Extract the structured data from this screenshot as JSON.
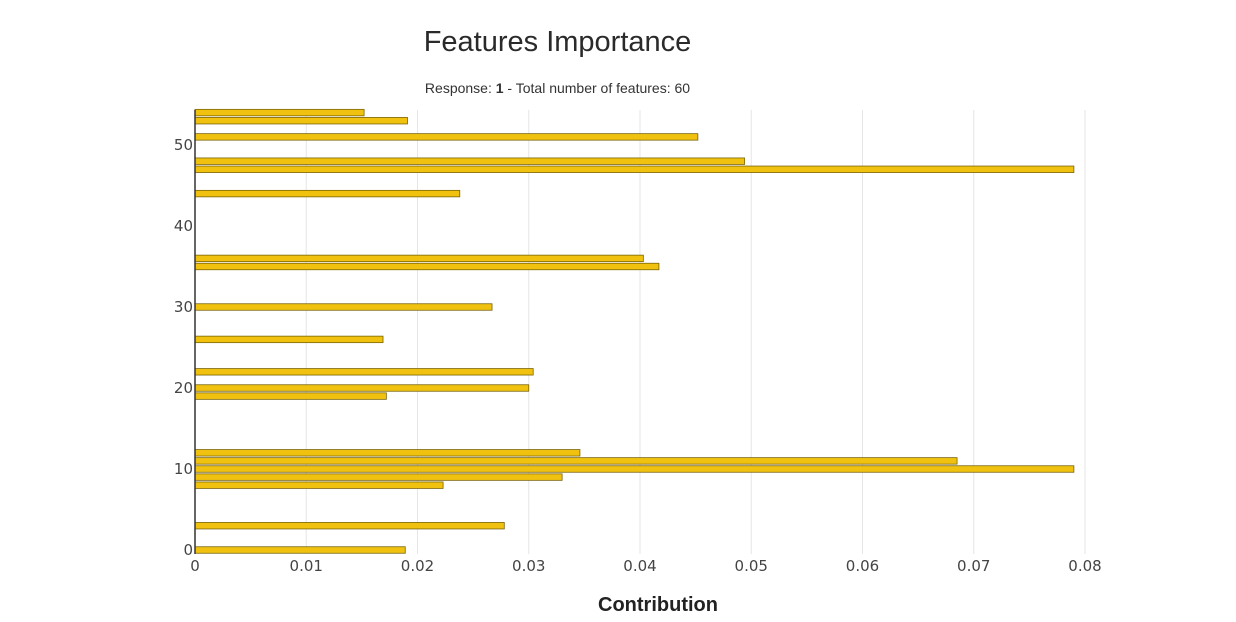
{
  "chart_data": {
    "type": "bar",
    "orientation": "horizontal",
    "title": "Features Importance",
    "subtitle": {
      "prefix": "Response: ",
      "response": "1",
      "suffix": " - Total number of features: 60"
    },
    "xlabel": "Contribution",
    "ylabel": "",
    "xlim": [
      0,
      0.08
    ],
    "ylim": [
      0,
      54
    ],
    "x_ticks": [
      0,
      0.01,
      0.02,
      0.03,
      0.04,
      0.05,
      0.06,
      0.07,
      0.08
    ],
    "x_tick_labels": [
      "0",
      "0.01",
      "0.02",
      "0.03",
      "0.04",
      "0.05",
      "0.06",
      "0.07",
      "0.08"
    ],
    "y_ticks": [
      0,
      10,
      20,
      30,
      40,
      50
    ],
    "y_tick_labels": [
      "0",
      "10",
      "20",
      "30",
      "40",
      "50"
    ],
    "grid": "vertical",
    "bar_color": "#f0c20f",
    "bar_edge_color": "#7a6408",
    "bars": [
      {
        "feature": 0,
        "value": 0.0189
      },
      {
        "feature": 3,
        "value": 0.0278
      },
      {
        "feature": 8,
        "value": 0.0223
      },
      {
        "feature": 9,
        "value": 0.033
      },
      {
        "feature": 10,
        "value": 0.079
      },
      {
        "feature": 11,
        "value": 0.0685
      },
      {
        "feature": 12,
        "value": 0.0346
      },
      {
        "feature": 19,
        "value": 0.0172
      },
      {
        "feature": 20,
        "value": 0.03
      },
      {
        "feature": 22,
        "value": 0.0304
      },
      {
        "feature": 26,
        "value": 0.0169
      },
      {
        "feature": 30,
        "value": 0.0267
      },
      {
        "feature": 35,
        "value": 0.0417
      },
      {
        "feature": 36,
        "value": 0.0403
      },
      {
        "feature": 44,
        "value": 0.0238
      },
      {
        "feature": 47,
        "value": 0.079
      },
      {
        "feature": 48,
        "value": 0.0494
      },
      {
        "feature": 51,
        "value": 0.0452
      },
      {
        "feature": 53,
        "value": 0.0191
      },
      {
        "feature": 54,
        "value": 0.0152
      }
    ]
  }
}
